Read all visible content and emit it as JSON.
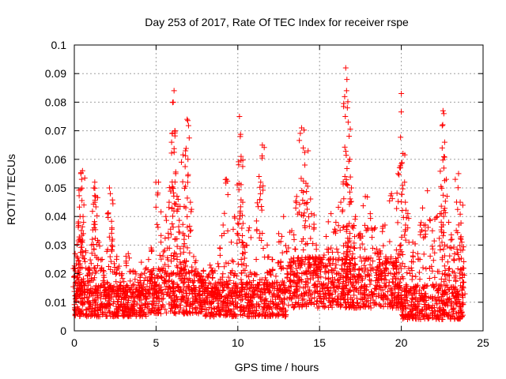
{
  "chart_data": {
    "type": "scatter",
    "title": "Day 253 of 2017, Rate Of TEC Index for receiver rspe",
    "xlabel": "GPS time / hours",
    "ylabel": "ROTI / TECUs",
    "xlim": [
      0,
      25
    ],
    "ylim": [
      0,
      0.1
    ],
    "x_ticks": [
      "0",
      "5",
      "10",
      "15",
      "20",
      "25"
    ],
    "y_ticks": [
      "0",
      "0.01",
      "0.02",
      "0.03",
      "0.04",
      "0.05",
      "0.06",
      "0.07",
      "0.08",
      "0.09",
      "0.1"
    ],
    "x_tick_values": [
      0,
      5,
      10,
      15,
      20,
      25
    ],
    "y_tick_values": [
      0,
      0.01,
      0.02,
      0.03,
      0.04,
      0.05,
      0.06,
      0.07,
      0.08,
      0.09,
      0.1
    ],
    "grid": true,
    "marker": "+",
    "color": "#ff0000",
    "series": [
      {
        "points": [
          [
            0.05,
            0.027
          ],
          [
            0.15,
            0.026
          ],
          [
            0.25,
            0.021
          ],
          [
            0.3,
            0.032
          ],
          [
            0.35,
            0.04
          ],
          [
            0.4,
            0.055
          ],
          [
            0.45,
            0.053
          ],
          [
            0.5,
            0.056
          ],
          [
            0.55,
            0.034
          ],
          [
            0.7,
            0.028
          ],
          [
            0.9,
            0.022
          ],
          [
            1.1,
            0.032
          ],
          [
            1.2,
            0.05
          ],
          [
            1.25,
            0.052
          ],
          [
            1.3,
            0.047
          ],
          [
            1.5,
            0.031
          ],
          [
            1.7,
            0.025
          ],
          [
            2.0,
            0.017
          ],
          [
            2.15,
            0.05
          ],
          [
            2.2,
            0.048
          ],
          [
            2.3,
            0.036
          ],
          [
            2.6,
            0.026
          ],
          [
            2.9,
            0.02
          ],
          [
            3.3,
            0.027
          ],
          [
            3.6,
            0.021
          ],
          [
            3.9,
            0.017
          ],
          [
            4.1,
            0.024
          ],
          [
            4.4,
            0.022
          ],
          [
            4.7,
            0.029
          ],
          [
            4.9,
            0.017
          ],
          [
            5.15,
            0.052
          ],
          [
            5.3,
            0.031
          ],
          [
            5.6,
            0.04
          ],
          [
            5.8,
            0.045
          ],
          [
            5.95,
            0.066
          ],
          [
            6.05,
            0.08
          ],
          [
            6.1,
            0.084
          ],
          [
            6.15,
            0.07
          ],
          [
            6.2,
            0.055
          ],
          [
            6.35,
            0.046
          ],
          [
            6.55,
            0.059
          ],
          [
            6.65,
            0.034
          ],
          [
            6.8,
            0.063
          ],
          [
            6.9,
            0.074
          ],
          [
            6.95,
            0.06
          ],
          [
            7.1,
            0.045
          ],
          [
            7.3,
            0.026
          ],
          [
            7.6,
            0.02
          ],
          [
            7.9,
            0.017
          ],
          [
            8.3,
            0.023
          ],
          [
            8.6,
            0.021
          ],
          [
            8.9,
            0.029
          ],
          [
            9.1,
            0.037
          ],
          [
            9.3,
            0.053
          ],
          [
            9.6,
            0.031
          ],
          [
            9.8,
            0.04
          ],
          [
            10.1,
            0.075
          ],
          [
            10.15,
            0.068
          ],
          [
            10.2,
            0.061
          ],
          [
            10.3,
            0.045
          ],
          [
            10.5,
            0.03
          ],
          [
            10.7,
            0.036
          ],
          [
            11.0,
            0.02
          ],
          [
            11.3,
            0.054
          ],
          [
            11.4,
            0.052
          ],
          [
            11.5,
            0.065
          ],
          [
            11.8,
            0.03
          ],
          [
            12.1,
            0.025
          ],
          [
            12.5,
            0.034
          ],
          [
            12.8,
            0.04
          ],
          [
            13.1,
            0.029
          ],
          [
            13.3,
            0.035
          ],
          [
            13.6,
            0.047
          ],
          [
            13.9,
            0.071
          ],
          [
            14.0,
            0.064
          ],
          [
            14.1,
            0.058
          ],
          [
            14.3,
            0.063
          ],
          [
            14.5,
            0.041
          ],
          [
            14.8,
            0.03
          ],
          [
            15.1,
            0.025
          ],
          [
            15.4,
            0.033
          ],
          [
            15.7,
            0.041
          ],
          [
            16.0,
            0.038
          ],
          [
            16.3,
            0.045
          ],
          [
            16.55,
            0.054
          ],
          [
            16.6,
            0.092
          ],
          [
            16.65,
            0.084
          ],
          [
            16.7,
            0.078
          ],
          [
            16.75,
            0.073
          ],
          [
            16.85,
            0.06
          ],
          [
            16.95,
            0.05
          ],
          [
            17.2,
            0.04
          ],
          [
            17.5,
            0.034
          ],
          [
            17.8,
            0.047
          ],
          [
            18.1,
            0.041
          ],
          [
            18.4,
            0.036
          ],
          [
            18.7,
            0.028
          ],
          [
            19.0,
            0.037
          ],
          [
            19.4,
            0.048
          ],
          [
            19.8,
            0.055
          ],
          [
            19.95,
            0.057
          ],
          [
            20.0,
            0.083
          ],
          [
            20.1,
            0.062
          ],
          [
            20.2,
            0.052
          ],
          [
            20.4,
            0.041
          ],
          [
            20.7,
            0.031
          ],
          [
            21.0,
            0.027
          ],
          [
            21.3,
            0.043
          ],
          [
            21.6,
            0.049
          ],
          [
            21.9,
            0.035
          ],
          [
            22.2,
            0.04
          ],
          [
            22.5,
            0.064
          ],
          [
            22.55,
            0.077
          ],
          [
            22.6,
            0.076
          ],
          [
            22.65,
            0.066
          ],
          [
            22.75,
            0.053
          ],
          [
            22.9,
            0.038
          ],
          [
            23.1,
            0.032
          ],
          [
            23.3,
            0.053
          ],
          [
            23.5,
            0.055
          ],
          [
            23.6,
            0.045
          ],
          [
            23.7,
            0.031
          ],
          [
            23.75,
            0.022
          ]
        ],
        "baseline_band": [
          {
            "x_start": 0,
            "x_end": 4.5,
            "y_min": 0.005,
            "y_max": 0.016
          },
          {
            "x_start": 4.5,
            "x_end": 8.0,
            "y_min": 0.006,
            "y_max": 0.022
          },
          {
            "x_start": 8.0,
            "x_end": 13.0,
            "y_min": 0.005,
            "y_max": 0.017
          },
          {
            "x_start": 13.0,
            "x_end": 20.0,
            "y_min": 0.008,
            "y_max": 0.026
          },
          {
            "x_start": 20.0,
            "x_end": 23.8,
            "y_min": 0.004,
            "y_max": 0.016
          }
        ]
      }
    ]
  }
}
